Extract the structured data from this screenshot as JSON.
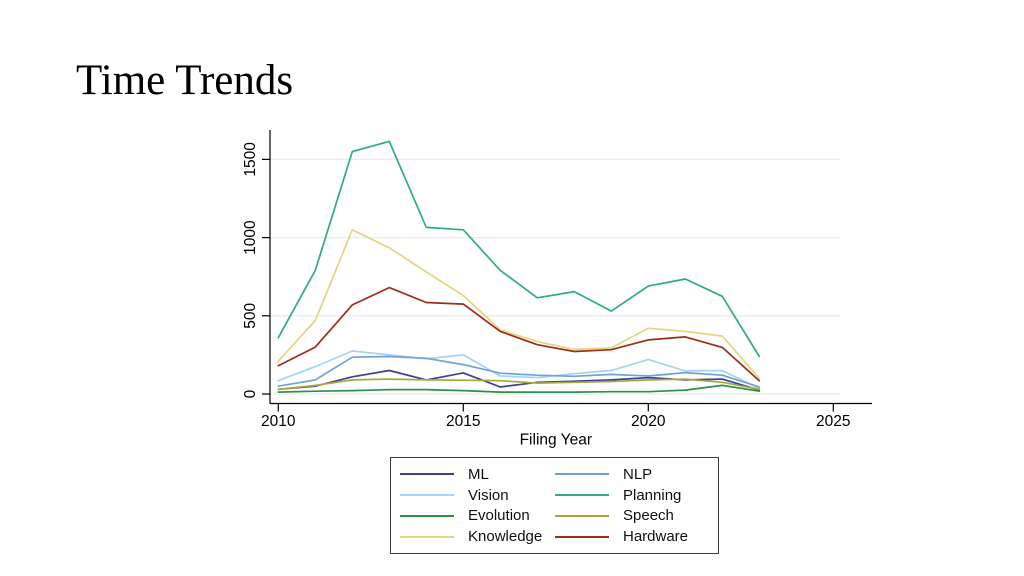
{
  "slide": {
    "title": "Time Trends",
    "background_color": "#ffffff"
  },
  "chart_data": {
    "type": "line",
    "title": "",
    "xlabel": "Filing Year",
    "ylabel": "",
    "x": [
      2010,
      2011,
      2012,
      2013,
      2014,
      2015,
      2016,
      2017,
      2018,
      2019,
      2020,
      2021,
      2022,
      2023
    ],
    "x_ticks": [
      2010,
      2015,
      2020,
      2025
    ],
    "y_ticks": [
      0,
      500,
      1000,
      1500
    ],
    "xlim": [
      2009.8,
      2026.1
    ],
    "ylim": [
      0,
      1690
    ],
    "grid": true,
    "gridline_color": "#ececec",
    "axis_color": "#000000",
    "legend_position": "bottom-box",
    "legend_columns": 2,
    "legend_fill_order": "column-major",
    "series": [
      {
        "name": "ML",
        "color": "#413f8f",
        "values": [
          30,
          50,
          110,
          150,
          90,
          135,
          45,
          75,
          82,
          90,
          105,
          90,
          95,
          25
        ]
      },
      {
        "name": "Vision",
        "color": "#a7d3f2",
        "values": [
          85,
          175,
          275,
          250,
          225,
          250,
          115,
          105,
          130,
          150,
          220,
          148,
          150,
          35
        ]
      },
      {
        "name": "Evolution",
        "color": "#2f9148",
        "values": [
          12,
          18,
          22,
          28,
          28,
          22,
          12,
          12,
          12,
          15,
          15,
          25,
          55,
          18
        ]
      },
      {
        "name": "Knowledge",
        "color": "#e3d67d",
        "values": [
          210,
          470,
          1050,
          935,
          780,
          630,
          410,
          335,
          285,
          295,
          420,
          400,
          370,
          100
        ]
      },
      {
        "name": "NLP",
        "color": "#6fa3d6",
        "values": [
          50,
          90,
          235,
          240,
          228,
          188,
          133,
          120,
          113,
          125,
          115,
          137,
          120,
          45
        ]
      },
      {
        "name": "Planning",
        "color": "#2fa98c",
        "values": [
          360,
          790,
          1550,
          1615,
          1065,
          1050,
          790,
          615,
          655,
          530,
          690,
          735,
          625,
          240
        ]
      },
      {
        "name": "Speech",
        "color": "#a6aa3d",
        "values": [
          30,
          55,
          90,
          95,
          90,
          88,
          85,
          70,
          75,
          80,
          90,
          95,
          75,
          30
        ]
      },
      {
        "name": "Hardware",
        "color": "#a02c1a",
        "values": [
          180,
          300,
          570,
          680,
          585,
          575,
          400,
          315,
          272,
          283,
          346,
          365,
          298,
          85
        ]
      }
    ]
  }
}
